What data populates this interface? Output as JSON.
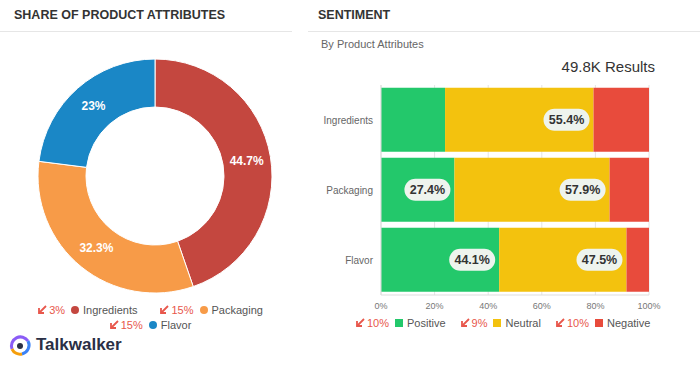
{
  "chart_data": [
    {
      "type": "pie",
      "title": "SHARE OF PRODUCT ATTRIBUTES",
      "categories": [
        "Ingredients",
        "Packaging",
        "Flavor"
      ],
      "values": [
        44.7,
        32.3,
        23
      ],
      "value_labels": [
        "44.7%",
        "32.3%",
        "23%"
      ],
      "colors": [
        "#c4473f",
        "#f79b48",
        "#1a87c6"
      ],
      "data_labels": true,
      "legend": "bottom",
      "trend_labels": [
        "3%",
        "15%",
        "15%"
      ]
    },
    {
      "type": "bar",
      "title": "SENTIMENT",
      "subtitle": "By Product Attributes",
      "annotation": "49.8K Results",
      "orientation": "horizontal",
      "stacked": true,
      "data_labels": true,
      "legend": "bottom",
      "grid": true,
      "categories": [
        "Ingredients",
        "Packaging",
        "Flavor"
      ],
      "series": [
        {
          "name": "Positive",
          "color": "#23c86b",
          "values": [
            23.9,
            27.4,
            44.1
          ],
          "value_labels": [
            null,
            "27.4%",
            "44.1%"
          ],
          "trend_label": "10%"
        },
        {
          "name": "Neutral",
          "color": "#f3c20e",
          "values": [
            55.4,
            57.9,
            47.5
          ],
          "value_labels": [
            "55.4%",
            "57.9%",
            "47.5%"
          ],
          "trend_label": "9%"
        },
        {
          "name": "Negative",
          "color": "#e84b3c",
          "values": [
            20.7,
            14.7,
            8.4
          ],
          "value_labels": [
            null,
            null,
            null
          ],
          "trend_label": "10%"
        }
      ],
      "xlim": [
        0,
        100
      ],
      "xticks": [
        {
          "value": 0,
          "label": "0%"
        },
        {
          "value": 20,
          "label": "20%"
        },
        {
          "value": 40,
          "label": "40%"
        },
        {
          "value": 60,
          "label": "60%"
        },
        {
          "value": 80,
          "label": "80%"
        },
        {
          "value": 100,
          "label": "100%"
        }
      ]
    }
  ],
  "brand": "Talkwalker"
}
